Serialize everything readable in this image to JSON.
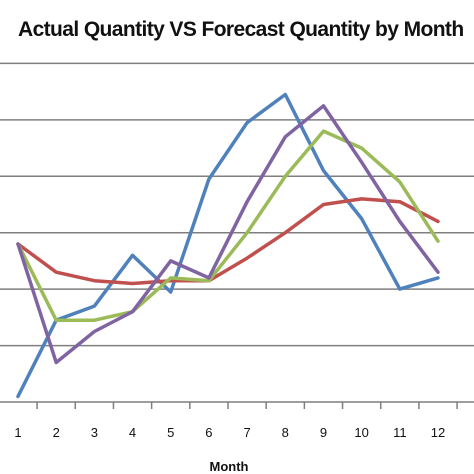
{
  "chart_data": {
    "type": "line",
    "title": "Actual Quantity VS Forecast Quantity by Month",
    "xlabel": "Month",
    "ylabel": "",
    "x": [
      1,
      2,
      3,
      4,
      5,
      6,
      7,
      8,
      9,
      10,
      11,
      12
    ],
    "ylim": [
      0,
      7
    ],
    "y_gridlines": [
      1,
      2,
      3,
      4,
      5,
      6
    ],
    "grid": true,
    "legend": "none",
    "series": [
      {
        "color": "#4f81bd",
        "values": [
          0.1,
          1.45,
          1.7,
          2.6,
          1.95,
          3.95,
          4.95,
          5.45,
          4.1,
          3.25,
          2.0,
          2.2
        ]
      },
      {
        "color": "#c0504d",
        "values": [
          2.8,
          2.3,
          2.15,
          2.1,
          2.15,
          2.15,
          2.55,
          3.0,
          3.5,
          3.6,
          3.55,
          3.2
        ]
      },
      {
        "color": "#9bbb59",
        "values": [
          2.8,
          1.45,
          1.45,
          1.6,
          2.2,
          2.15,
          3.0,
          4.0,
          4.8,
          4.5,
          3.9,
          2.85
        ]
      },
      {
        "color": "#8064a2",
        "values": [
          2.8,
          0.7,
          1.25,
          1.6,
          2.5,
          2.2,
          3.55,
          4.7,
          5.25,
          4.25,
          3.2,
          2.3
        ]
      }
    ]
  }
}
